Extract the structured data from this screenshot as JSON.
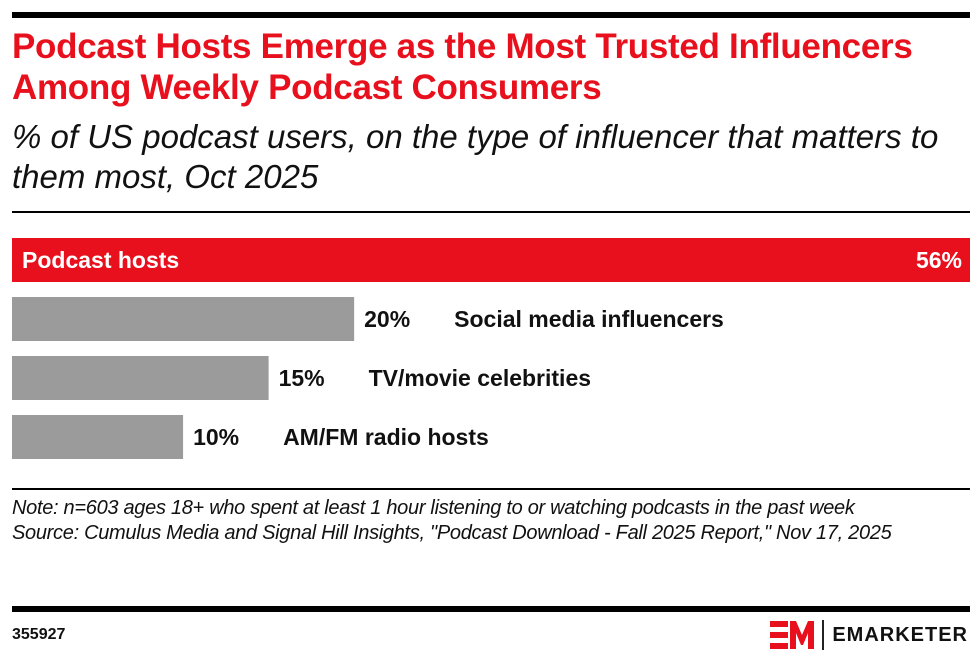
{
  "header": {
    "title": "Podcast Hosts Emerge as the Most Trusted Influencers Among Weekly Podcast Consumers",
    "subtitle": "% of US podcast users, on the type of influencer that matters to them most, Oct 2025"
  },
  "chart_data": {
    "type": "bar",
    "orientation": "horizontal",
    "title": "Podcast Hosts Emerge as the Most Trusted Influencers Among Weekly Podcast Consumers",
    "subtitle": "% of US podcast users, on the type of influencer that matters to them most, Oct 2025",
    "categories": [
      "Podcast hosts",
      "Social media influencers",
      "TV/movie celebrities",
      "AM/FM radio hosts"
    ],
    "values": [
      56,
      20,
      15,
      10
    ],
    "value_labels": [
      "56%",
      "20%",
      "15%",
      "10%"
    ],
    "unit": "%",
    "highlight_index": 0,
    "colors": {
      "highlight": "#e8101d",
      "default": "#9b9b9b"
    },
    "xlim": [
      0,
      56
    ],
    "grid": false,
    "legend": "none"
  },
  "footer": {
    "note": "Note: n=603 ages 18+ who spent at least 1 hour listening to or watching podcasts in the past week",
    "source": "Source: Cumulus Media and Signal Hill Insights, \"Podcast Download - Fall 2025 Report,\" Nov 17, 2025",
    "chart_id": "355927",
    "brand": "EMARKETER",
    "brand_mark": "EM"
  }
}
